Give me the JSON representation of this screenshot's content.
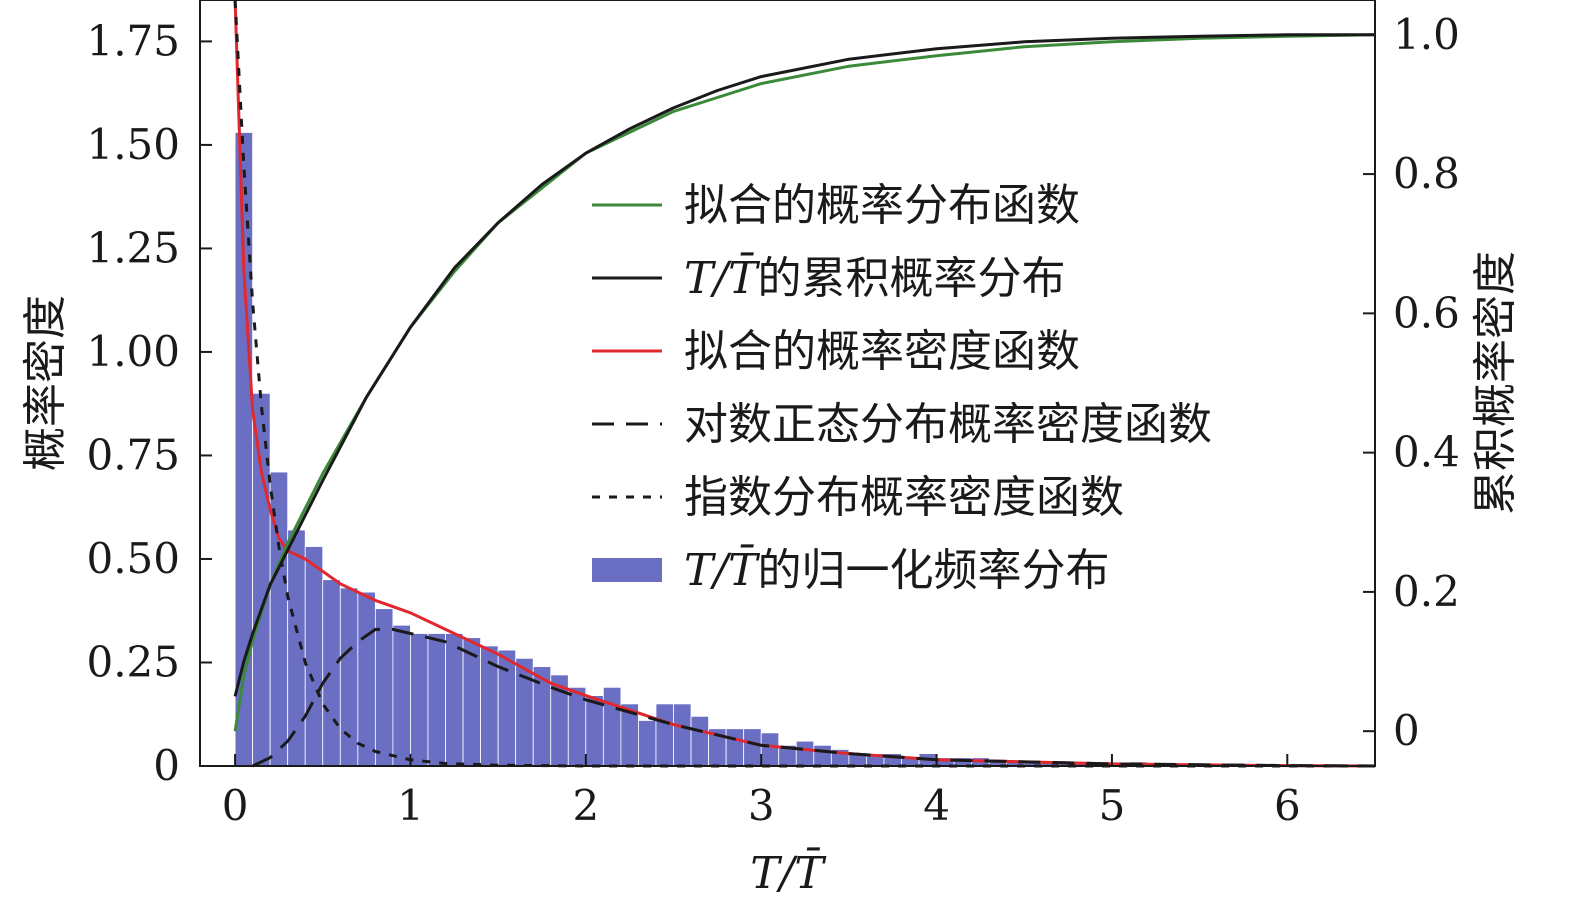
{
  "chart_data": {
    "type": "bar",
    "xlabel": "T/T̄",
    "ylabel_left": "概率密度",
    "ylabel_right": "累积概率密度",
    "xlim": [
      -0.2,
      6.5
    ],
    "ylim_left": [
      0,
      1.85
    ],
    "ylim_right": [
      -0.05,
      1.05
    ],
    "x_ticks": [
      0,
      1,
      2,
      3,
      4,
      5,
      6
    ],
    "x_tick_labels": [
      "0",
      "1",
      "2",
      "3",
      "4",
      "5",
      "6"
    ],
    "y_left_ticks": [
      0,
      0.25,
      0.5,
      0.75,
      1.0,
      1.25,
      1.5,
      1.75
    ],
    "y_left_tick_labels": [
      "0",
      "0.25",
      "0.50",
      "0.75",
      "1.00",
      "1.25",
      "1.50",
      "1.75"
    ],
    "y_right_ticks": [
      0,
      0.2,
      0.4,
      0.6,
      0.8,
      1.0
    ],
    "y_right_tick_labels": [
      "0",
      "0.2",
      "0.4",
      "0.6",
      "0.8",
      "1.0"
    ],
    "colors": {
      "histogram": "#6a6fc4",
      "fit_cdf": "#3a8a3a",
      "empirical_cdf": "#1a1a1a",
      "fit_pdf": "#e0282e",
      "lognormal_pdf": "#1a1a1a",
      "exponential_pdf": "#1a1a1a"
    },
    "histogram": {
      "name": "T/T̄的归一化频率分布",
      "bin_width": 0.1,
      "bin_start": 0,
      "values": [
        1.53,
        0.9,
        0.71,
        0.57,
        0.53,
        0.45,
        0.43,
        0.42,
        0.38,
        0.34,
        0.32,
        0.32,
        0.32,
        0.31,
        0.29,
        0.28,
        0.26,
        0.24,
        0.22,
        0.19,
        0.17,
        0.19,
        0.15,
        0.11,
        0.15,
        0.15,
        0.12,
        0.09,
        0.09,
        0.09,
        0.08,
        0.05,
        0.06,
        0.05,
        0.04,
        0.03,
        0.03,
        0.03,
        0.02,
        0.03,
        0.02,
        0.02,
        0.02,
        0.01,
        0.01,
        0.01,
        0.01,
        0.01,
        0.01,
        0.01,
        0.0,
        0.01,
        0.0,
        0.0,
        0.0,
        0.0,
        0.0,
        0.0,
        0.0,
        0.0,
        0.0,
        0.0,
        0.0,
        0.0,
        0.0
      ]
    },
    "series": [
      {
        "name": "拟合的概率分布函数",
        "axis": "right",
        "style": "solid",
        "x": [
          0,
          0.05,
          0.1,
          0.2,
          0.3,
          0.5,
          0.75,
          1.0,
          1.25,
          1.5,
          1.75,
          2.0,
          2.25,
          2.5,
          2.75,
          3.0,
          3.5,
          4.0,
          4.5,
          5.0,
          5.5,
          6.0,
          6.5
        ],
        "y": [
          0.0,
          0.08,
          0.13,
          0.21,
          0.27,
          0.37,
          0.48,
          0.58,
          0.66,
          0.73,
          0.78,
          0.83,
          0.86,
          0.89,
          0.91,
          0.93,
          0.955,
          0.97,
          0.983,
          0.99,
          0.995,
          0.998,
          1.0
        ]
      },
      {
        "name": "T/T̄的累积概率分布",
        "axis": "right",
        "style": "solid",
        "x": [
          0,
          0.05,
          0.1,
          0.2,
          0.3,
          0.5,
          0.75,
          1.0,
          1.25,
          1.5,
          1.75,
          2.0,
          2.25,
          2.5,
          2.75,
          3.0,
          3.5,
          4.0,
          4.5,
          5.0,
          5.5,
          6.0,
          6.5
        ],
        "y": [
          0.05,
          0.1,
          0.14,
          0.21,
          0.26,
          0.36,
          0.48,
          0.58,
          0.665,
          0.73,
          0.785,
          0.83,
          0.865,
          0.895,
          0.92,
          0.94,
          0.965,
          0.98,
          0.99,
          0.995,
          0.998,
          1.0,
          1.0
        ]
      },
      {
        "name": "拟合的概率密度函数",
        "axis": "left",
        "style": "solid",
        "x": [
          0,
          0.05,
          0.1,
          0.15,
          0.2,
          0.25,
          0.3,
          0.4,
          0.5,
          0.6,
          0.7,
          0.8,
          1.0,
          1.2,
          1.5,
          1.8,
          2.0,
          2.5,
          3.0,
          3.5,
          4.0,
          5.0,
          6.0,
          6.5
        ],
        "y": [
          1.85,
          1.2,
          0.86,
          0.71,
          0.62,
          0.55,
          0.52,
          0.5,
          0.47,
          0.44,
          0.42,
          0.4,
          0.37,
          0.33,
          0.27,
          0.2,
          0.17,
          0.1,
          0.05,
          0.03,
          0.015,
          0.005,
          0.001,
          0.0
        ]
      },
      {
        "name": "对数正态分布概率密度函数",
        "axis": "left",
        "style": "dashed",
        "x": [
          0.1,
          0.2,
          0.3,
          0.4,
          0.5,
          0.6,
          0.7,
          0.8,
          0.9,
          1.0,
          1.1,
          1.2,
          1.5,
          1.8,
          2.0,
          2.5,
          3.0,
          3.5,
          4.0,
          5.0,
          6.0,
          6.5
        ],
        "y": [
          0.0,
          0.02,
          0.06,
          0.12,
          0.2,
          0.26,
          0.3,
          0.33,
          0.33,
          0.32,
          0.31,
          0.3,
          0.24,
          0.19,
          0.16,
          0.1,
          0.05,
          0.03,
          0.015,
          0.005,
          0.001,
          0.0
        ]
      },
      {
        "name": "指数分布概率密度函数",
        "axis": "left",
        "style": "dotted",
        "x": [
          0,
          0.05,
          0.1,
          0.15,
          0.2,
          0.25,
          0.3,
          0.4,
          0.5,
          0.6,
          0.7,
          0.8,
          1.0,
          1.2,
          1.5,
          2.0,
          3.0,
          6.5
        ],
        "y": [
          1.85,
          1.45,
          1.12,
          0.87,
          0.68,
          0.53,
          0.41,
          0.25,
          0.15,
          0.09,
          0.055,
          0.035,
          0.015,
          0.006,
          0.002,
          0.0,
          0.0,
          0.0
        ]
      }
    ],
    "legend": {
      "placement": "center-right",
      "entries": [
        {
          "label": "拟合的概率分布函数",
          "kind": "line",
          "color": "#3a8a3a",
          "dash": "solid"
        },
        {
          "prefix_var": "T/T̄",
          "label": "的累积概率分布",
          "kind": "line",
          "color": "#1a1a1a",
          "dash": "solid"
        },
        {
          "label": "拟合的概率密度函数",
          "kind": "line",
          "color": "#e0282e",
          "dash": "solid"
        },
        {
          "label": "对数正态分布概率密度函数",
          "kind": "line",
          "color": "#1a1a1a",
          "dash": "dashed"
        },
        {
          "label": "指数分布概率密度函数",
          "kind": "line",
          "color": "#1a1a1a",
          "dash": "dotted"
        },
        {
          "prefix_var": "T/T̄",
          "label": "的归一化频率分布",
          "kind": "patch",
          "color": "#6a6fc4"
        }
      ]
    }
  }
}
